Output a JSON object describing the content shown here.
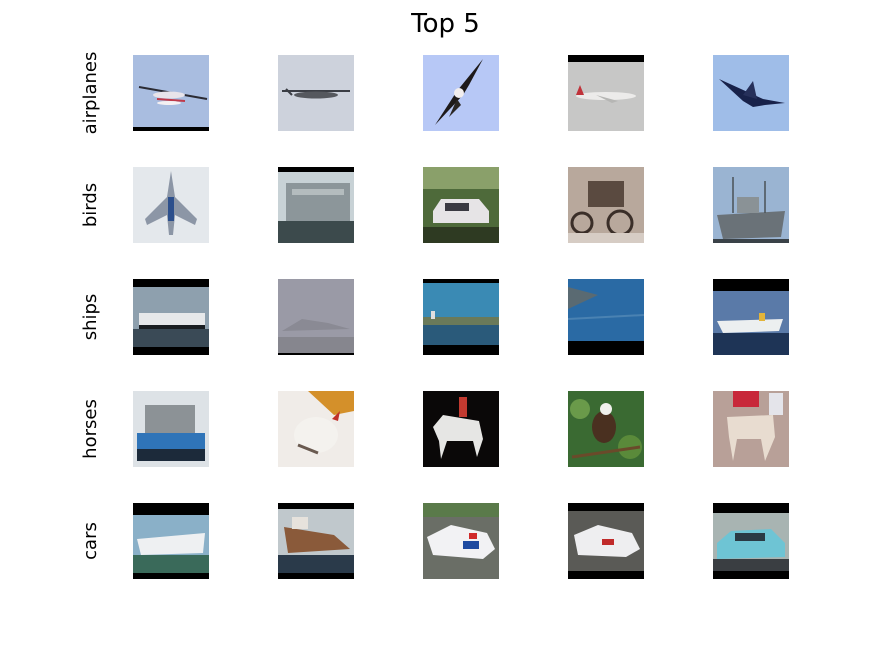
{
  "title": "Top 5",
  "rows": [
    {
      "label": "airplanes",
      "images": [
        {
          "subject": "seaplane in flight",
          "scene": "sky"
        },
        {
          "subject": "propeller bomber",
          "scene": "sky"
        },
        {
          "subject": "eagle",
          "scene": "sky"
        },
        {
          "subject": "jumbo jet",
          "scene": "sky"
        },
        {
          "subject": "jet fighter",
          "scene": "sky"
        }
      ]
    },
    {
      "label": "birds",
      "images": [
        {
          "subject": "fighter jet",
          "scene": "sky"
        },
        {
          "subject": "gray warship",
          "scene": "water"
        },
        {
          "subject": "white car with open hood",
          "scene": "grass"
        },
        {
          "subject": "antique car",
          "scene": "sepia"
        },
        {
          "subject": "cargo ship",
          "scene": "sky"
        }
      ]
    },
    {
      "label": "ships",
      "images": [
        {
          "subject": "cruise ship",
          "scene": "water"
        },
        {
          "subject": "ship in fog",
          "scene": "fog"
        },
        {
          "subject": "harbor skyline",
          "scene": "water"
        },
        {
          "subject": "aircraft carrier",
          "scene": "water"
        },
        {
          "subject": "white liner",
          "scene": "water"
        }
      ]
    },
    {
      "label": "horses",
      "images": [
        {
          "subject": "container ship",
          "scene": "water"
        },
        {
          "subject": "white chicken",
          "scene": "snow"
        },
        {
          "subject": "rider on white horse",
          "scene": "dark"
        },
        {
          "subject": "eagle on branch",
          "scene": "foliage"
        },
        {
          "subject": "decorated horse",
          "scene": "street"
        }
      ]
    },
    {
      "label": "cars",
      "images": [
        {
          "subject": "cruise ship",
          "scene": "water"
        },
        {
          "subject": "freighter",
          "scene": "water"
        },
        {
          "subject": "race car",
          "scene": "track"
        },
        {
          "subject": "race car",
          "scene": "track"
        },
        {
          "subject": "classic turquoise car",
          "scene": "street"
        }
      ]
    }
  ]
}
